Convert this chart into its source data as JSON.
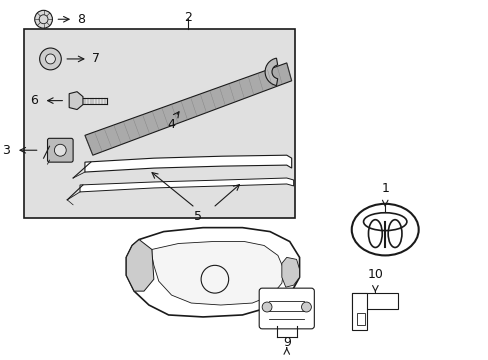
{
  "bg_color": "#ffffff",
  "box_bg": "#e0e0e0",
  "line_color": "#1a1a1a",
  "label_color": "#111111"
}
